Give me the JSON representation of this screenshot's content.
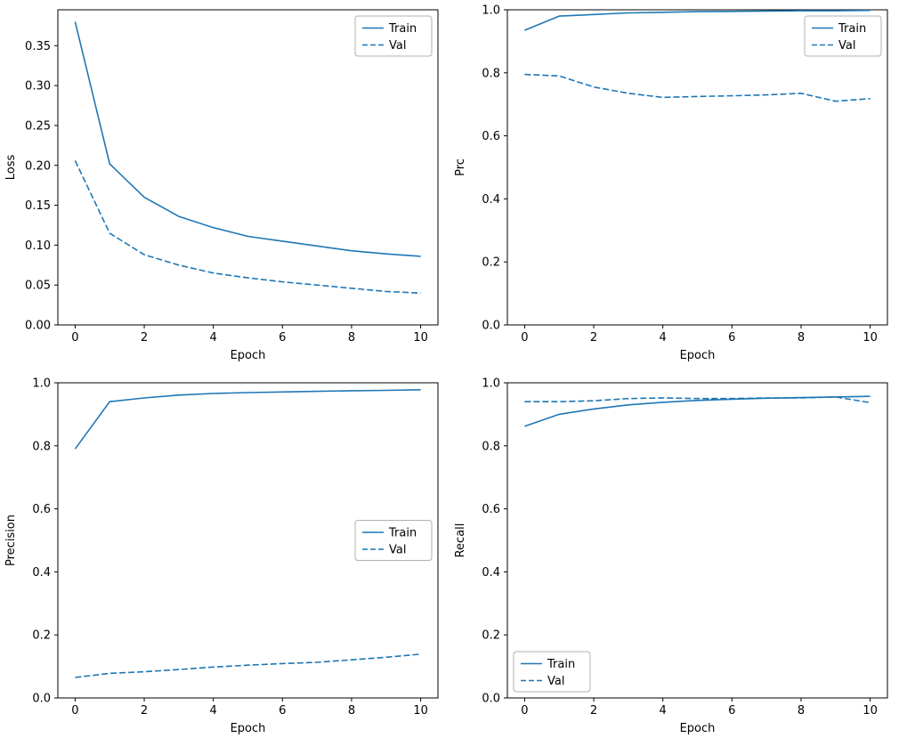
{
  "figure": {
    "background": "#ffffff",
    "line_color": "#1f77b4",
    "legend_entries": [
      "Train",
      "Val"
    ]
  },
  "chart_data": [
    {
      "type": "line",
      "title": "",
      "xlabel": "Epoch",
      "ylabel": "Loss",
      "x": [
        0,
        1,
        2,
        3,
        4,
        5,
        6,
        7,
        8,
        9,
        10
      ],
      "series": [
        {
          "name": "Train",
          "style": "solid",
          "color": "#1f77b4",
          "values": [
            0.38,
            0.202,
            0.16,
            0.136,
            0.122,
            0.111,
            0.105,
            0.099,
            0.093,
            0.089,
            0.086
          ]
        },
        {
          "name": "Val",
          "style": "dashed",
          "color": "#1f77b4",
          "values": [
            0.206,
            0.115,
            0.088,
            0.075,
            0.065,
            0.059,
            0.054,
            0.05,
            0.046,
            0.042,
            0.04
          ]
        }
      ],
      "xlim": [
        -0.5,
        10.5
      ],
      "ylim": [
        0,
        0.395
      ],
      "xticks": [
        0,
        2,
        4,
        6,
        8,
        10
      ],
      "xtick_labels": [
        "0",
        "2",
        "4",
        "6",
        "8",
        "10"
      ],
      "yticks": [
        0.0,
        0.05,
        0.1,
        0.15,
        0.2,
        0.25,
        0.3,
        0.35
      ],
      "ytick_labels": [
        "0.00",
        "0.05",
        "0.10",
        "0.15",
        "0.20",
        "0.25",
        "0.30",
        "0.35"
      ],
      "legend_pos": "upper-right",
      "grid": false
    },
    {
      "type": "line",
      "title": "",
      "xlabel": "Epoch",
      "ylabel": "Prc",
      "x": [
        0,
        1,
        2,
        3,
        4,
        5,
        6,
        7,
        8,
        9,
        10
      ],
      "series": [
        {
          "name": "Train",
          "style": "solid",
          "color": "#1f77b4",
          "values": [
            0.935,
            0.98,
            0.985,
            0.99,
            0.992,
            0.994,
            0.995,
            0.996,
            0.997,
            0.997,
            0.998
          ]
        },
        {
          "name": "Val",
          "style": "dashed",
          "color": "#1f77b4",
          "values": [
            0.795,
            0.79,
            0.755,
            0.735,
            0.722,
            0.725,
            0.727,
            0.73,
            0.735,
            0.71,
            0.718
          ]
        }
      ],
      "xlim": [
        -0.5,
        10.5
      ],
      "ylim": [
        0,
        1.0
      ],
      "xticks": [
        0,
        2,
        4,
        6,
        8,
        10
      ],
      "xtick_labels": [
        "0",
        "2",
        "4",
        "6",
        "8",
        "10"
      ],
      "yticks": [
        0.0,
        0.2,
        0.4,
        0.6,
        0.8,
        1.0
      ],
      "ytick_labels": [
        "0.0",
        "0.2",
        "0.4",
        "0.6",
        "0.8",
        "1.0"
      ],
      "legend_pos": "upper-right",
      "grid": false
    },
    {
      "type": "line",
      "title": "",
      "xlabel": "Epoch",
      "ylabel": "Precision",
      "x": [
        0,
        1,
        2,
        3,
        4,
        5,
        6,
        7,
        8,
        9,
        10
      ],
      "series": [
        {
          "name": "Train",
          "style": "solid",
          "color": "#1f77b4",
          "values": [
            0.79,
            0.94,
            0.952,
            0.961,
            0.966,
            0.969,
            0.971,
            0.973,
            0.975,
            0.976,
            0.978
          ]
        },
        {
          "name": "Val",
          "style": "dashed",
          "color": "#1f77b4",
          "values": [
            0.065,
            0.078,
            0.083,
            0.09,
            0.098,
            0.104,
            0.109,
            0.113,
            0.121,
            0.129,
            0.139
          ]
        }
      ],
      "xlim": [
        -0.5,
        10.5
      ],
      "ylim": [
        0,
        1.0
      ],
      "xticks": [
        0,
        2,
        4,
        6,
        8,
        10
      ],
      "xtick_labels": [
        "0",
        "2",
        "4",
        "6",
        "8",
        "10"
      ],
      "yticks": [
        0.0,
        0.2,
        0.4,
        0.6,
        0.8,
        1.0
      ],
      "ytick_labels": [
        "0.0",
        "0.2",
        "0.4",
        "0.6",
        "0.8",
        "1.0"
      ],
      "legend_pos": "center-right",
      "grid": false
    },
    {
      "type": "line",
      "title": "",
      "xlabel": "Epoch",
      "ylabel": "Recall",
      "x": [
        0,
        1,
        2,
        3,
        4,
        5,
        6,
        7,
        8,
        9,
        10
      ],
      "series": [
        {
          "name": "Train",
          "style": "solid",
          "color": "#1f77b4",
          "values": [
            0.862,
            0.9,
            0.917,
            0.93,
            0.938,
            0.944,
            0.948,
            0.951,
            0.953,
            0.955,
            0.957
          ]
        },
        {
          "name": "Val",
          "style": "dashed",
          "color": "#1f77b4",
          "values": [
            0.94,
            0.94,
            0.943,
            0.95,
            0.952,
            0.95,
            0.95,
            0.952,
            0.952,
            0.955,
            0.937
          ]
        }
      ],
      "xlim": [
        -0.5,
        10.5
      ],
      "ylim": [
        0,
        1.0
      ],
      "xticks": [
        0,
        2,
        4,
        6,
        8,
        10
      ],
      "xtick_labels": [
        "0",
        "2",
        "4",
        "6",
        "8",
        "10"
      ],
      "yticks": [
        0.0,
        0.2,
        0.4,
        0.6,
        0.8,
        1.0
      ],
      "ytick_labels": [
        "0.0",
        "0.2",
        "0.4",
        "0.6",
        "0.8",
        "1.0"
      ],
      "legend_pos": "lower-left",
      "grid": false
    }
  ]
}
